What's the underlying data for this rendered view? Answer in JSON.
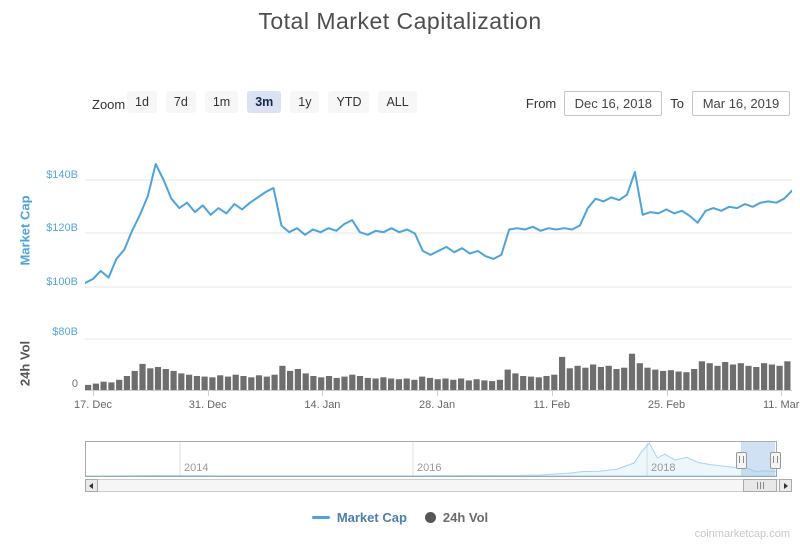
{
  "title": "Total Market Capitalization",
  "watermark": "coinmarketcap.com",
  "toolbar": {
    "zoom_label": "Zoom",
    "buttons": [
      "1d",
      "7d",
      "1m",
      "3m",
      "1y",
      "YTD",
      "ALL"
    ],
    "selected": "3m",
    "from_label": "From",
    "from_value": "Dec 16, 2018",
    "to_label": "To",
    "to_value": "Mar 16, 2019"
  },
  "legend": {
    "market_cap": "Market Cap",
    "vol": "24h Vol"
  },
  "colors": {
    "line_blue": "#4da3da",
    "axis_blue": "#55a7da",
    "volume_gray": "#6e6e6e",
    "gridline": "#e6e6e6",
    "axis_line": "#cccccc",
    "selected_button_bg": "#dbe2f1",
    "navigator_mask": "rgba(160,195,230,0.5)"
  },
  "chart_data": [
    {
      "type": "line",
      "name": "Market Cap",
      "ylabel": "Market Cap",
      "yticks": [
        {
          "label": "$140B",
          "value": 140
        },
        {
          "label": "$120B",
          "value": 120
        },
        {
          "label": "$100B",
          "value": 100
        }
      ],
      "ylim": [
        95,
        150
      ],
      "x_start_date": "2018-12-16",
      "x_step_days": 1,
      "xtick_labels": [
        "17. Dec",
        "31. Dec",
        "14. Jan",
        "28. Jan",
        "11. Feb",
        "25. Feb",
        "11. Mar"
      ],
      "grid": true,
      "unit": "$B",
      "values": [
        101.5,
        103,
        106,
        103.5,
        110.5,
        114,
        121,
        127,
        134,
        146,
        140,
        133,
        129.5,
        131.5,
        128,
        130.5,
        127,
        129.5,
        127.5,
        131,
        129,
        131.5,
        133.5,
        135.5,
        137,
        123,
        120.5,
        122,
        119.5,
        121.5,
        120.5,
        122,
        121,
        123.5,
        125,
        120.5,
        119.5,
        121,
        120.5,
        122,
        120.5,
        121.5,
        120,
        113.5,
        112,
        113.5,
        115,
        113,
        114.5,
        112.5,
        113.5,
        111.5,
        110.5,
        112,
        121.5,
        122,
        121.5,
        122.5,
        121,
        122,
        121.5,
        122,
        121.5,
        123,
        129.5,
        133,
        132,
        133.5,
        132.5,
        134.5,
        143,
        127,
        128,
        127.5,
        129,
        127.5,
        128.5,
        126.5,
        124,
        128.5,
        129.5,
        128.5,
        130,
        129.5,
        131,
        130,
        131.5,
        132,
        131.5,
        133,
        136
      ]
    },
    {
      "type": "bar",
      "name": "24h Vol",
      "ylabel": "24h Vol",
      "yticks": [
        {
          "label": "$80B",
          "value": 80
        },
        {
          "label": "0",
          "value": 0
        }
      ],
      "ylim": [
        0,
        90
      ],
      "x_start_date": "2018-12-16",
      "x_step_days": 1,
      "unit": "$B",
      "values": [
        8,
        10,
        13,
        12,
        16,
        22,
        30,
        41,
        34,
        36,
        33,
        30,
        26,
        24,
        22,
        21,
        20,
        23,
        21,
        24,
        22,
        20,
        23,
        21,
        24,
        38,
        30,
        33,
        26,
        22,
        20,
        22,
        19,
        21,
        24,
        22,
        19,
        18,
        20,
        18,
        17,
        18,
        16,
        21,
        19,
        17,
        18,
        16,
        18,
        15,
        17,
        15,
        14,
        16,
        32,
        26,
        22,
        21,
        20,
        22,
        24,
        52,
        34,
        38,
        35,
        40,
        36,
        38,
        33,
        35,
        57,
        42,
        35,
        32,
        30,
        31,
        29,
        28,
        33,
        45,
        42,
        38,
        44,
        40,
        42,
        38,
        36,
        42,
        40,
        38,
        45
      ]
    },
    {
      "type": "area",
      "name": "Navigator (all-time Market Cap)",
      "xtick_labels": [
        "2014",
        "2016",
        "2018"
      ],
      "x_years": [
        2013.2,
        2013.5,
        2013.85,
        2014.1,
        2014.5,
        2014.9,
        2015.2,
        2015.6,
        2016.0,
        2016.5,
        2016.9,
        2017.1,
        2017.35,
        2017.45,
        2017.6,
        2017.75,
        2017.9,
        2017.96,
        2018.03,
        2018.1,
        2018.16,
        2018.25,
        2018.35,
        2018.45,
        2018.55,
        2018.65,
        2018.75,
        2018.85,
        2018.88,
        2018.92,
        2018.96,
        2019.0,
        2019.1,
        2019.2
      ],
      "values": [
        1.5,
        4,
        15,
        10,
        6.5,
        5,
        3.8,
        4.5,
        7.5,
        12.5,
        15,
        25,
        75,
        110,
        120,
        170,
        330,
        600,
        830,
        450,
        550,
        400,
        470,
        340,
        290,
        255,
        220,
        210,
        185,
        135,
        102,
        130,
        120,
        134
      ],
      "unit": "$B",
      "selected_range": [
        "Dec 16, 2018",
        "Mar 16, 2019"
      ]
    }
  ]
}
